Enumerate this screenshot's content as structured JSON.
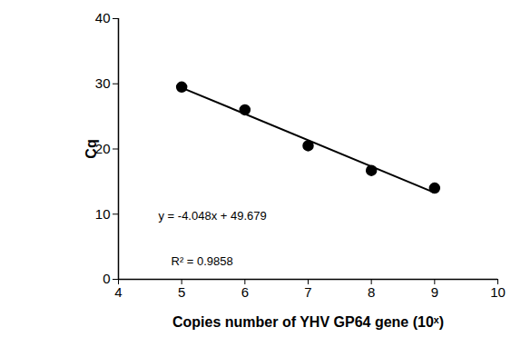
{
  "chart_data": {
    "type": "scatter",
    "x": [
      5,
      6,
      7,
      8,
      9
    ],
    "values": [
      29.5,
      26.0,
      20.5,
      16.7,
      14.0
    ],
    "color": "#000000",
    "marker": "circle",
    "trendline": {
      "x": [
        5,
        9
      ],
      "values": [
        29.4,
        13.3
      ],
      "color": "#000000",
      "line_style": "solid"
    },
    "x_label": "Copies number of YHV GP64 gene (10ˣ)",
    "y_label": "Cq",
    "annotations": [
      "y = -4.048x + 49.679",
      "R² = 0.9858"
    ],
    "xlim": [
      4,
      10
    ],
    "xticks": [
      4,
      5,
      6,
      7,
      8,
      9,
      10
    ],
    "ylim": [
      0,
      40
    ],
    "yticks": [
      0,
      10,
      20,
      30,
      40
    ],
    "grid": false
  }
}
